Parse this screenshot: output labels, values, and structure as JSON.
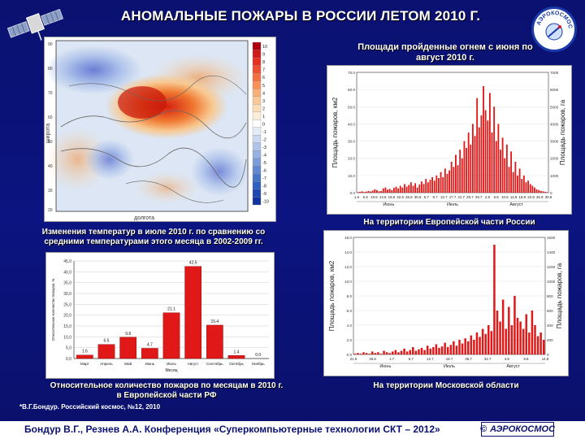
{
  "title": "АНОМАЛЬНЫЕ ПОЖАРЫ В РОССИИ ЛЕТОМ 2010 Г.",
  "areas_caption": "Площади пройденные огнем с июня по август 2010 г.",
  "europe_caption": "На территории Европейской части России",
  "moscow_caption": "На территории Московской области",
  "temp_caption": "Изменения температур в июле 2010 г. по сравнению со средними температурами этого месяца в 2002-2009 гг.",
  "relative_caption": "Относительное количество пожаров по месяцам в 2010 г. в Европейской части РФ",
  "source_note": "*В.Г.Бондур. Российский космос, №12, 2010",
  "footer": "Бондур В.Г., Резнев А.А. Конференция «Суперкомпьютерные технологии СКТ – 2012»",
  "badge_label": "АЭРОКОСМОС",
  "logo_label": "АЭРОКОСМОС",
  "map": {
    "ylabel": "широта",
    "xlabel": "долгота",
    "colorbar_ticks": [
      "10",
      "9",
      "8",
      "7",
      "6",
      "5",
      "4",
      "3",
      "2",
      "1",
      "0",
      "-1",
      "-2",
      "-3",
      "-4",
      "-5",
      "-6",
      "-7",
      "-8",
      "-9",
      "-10"
    ]
  },
  "colors": {
    "bar_red": "#e01818",
    "background": "#0b1480",
    "text_navy": "#0a1170"
  },
  "chart_data": [
    {
      "type": "bar",
      "categories": [
        "Март",
        "Апрель",
        "Май",
        "Июнь",
        "Июль",
        "Август",
        "Сентябрь",
        "Октябрь",
        "Ноябрь"
      ],
      "values": [
        1.6,
        6.5,
        9.8,
        4.7,
        21.1,
        42.5,
        15.4,
        1.4,
        0.0
      ],
      "value_labels": [
        "1.6",
        "6.5",
        "9.8",
        "4.7",
        "21.1",
        "42.5",
        "15.4",
        "1.4",
        "0.0"
      ],
      "xlabel": "Месяц",
      "ylabel": "Относительное количество пожаров, %",
      "yticks": [
        "0,0",
        "5,0",
        "10,0",
        "15,0",
        "20,0",
        "25,0",
        "30,0",
        "35,0",
        "40,0",
        "45,0"
      ],
      "ylim": [
        0,
        45
      ]
    },
    {
      "type": "bar",
      "ylabel": "Площадь пожаров, км2",
      "ylabel_right": "Площадь пожаров, га",
      "xticks": [
        "1.6",
        "6.6",
        "10.6",
        "14.6",
        "18.6",
        "22.6",
        "26.6",
        "30.6",
        "5.7",
        "9.7",
        "13.7",
        "17.7",
        "21.7",
        "25.7",
        "29.7",
        "2.8",
        "6.8",
        "10.8",
        "14.8",
        "18.8",
        "22.8",
        "26.8",
        "30.8"
      ],
      "month_labels": [
        "Июнь",
        "Июль",
        "Август"
      ],
      "yticks": [
        "0.0",
        "10.0",
        "20.0",
        "30.0",
        "40.0",
        "50.0",
        "60.0",
        "70.0"
      ],
      "yticks_right": [
        "0",
        "1000",
        "2000",
        "3000",
        "4000",
        "5000",
        "6000",
        "7000"
      ],
      "ylim": [
        0,
        70
      ],
      "values": [
        0.3,
        0.5,
        0.8,
        0.4,
        0.6,
        1.0,
        0.7,
        1.2,
        2.0,
        1.5,
        0.8,
        1.0,
        2.5,
        3.0,
        1.8,
        2.2,
        1.5,
        2.8,
        3.5,
        2.5,
        4.0,
        3.0,
        5.0,
        3.5,
        4.5,
        6.0,
        4.0,
        5.5,
        3.0,
        4.8,
        6.5,
        5.0,
        8.0,
        6.0,
        7.5,
        9.0,
        7.0,
        10.0,
        8.5,
        12.0,
        9.0,
        14.0,
        11.0,
        13.0,
        18.0,
        15.0,
        22.0,
        16.0,
        25.0,
        20.0,
        30.0,
        26.0,
        35.0,
        28.0,
        40.0,
        33.0,
        55.0,
        38.0,
        45.0,
        62.0,
        48.0,
        42.0,
        58.0,
        35.0,
        50.0,
        30.0,
        40.0,
        25.0,
        32.0,
        20.0,
        28.0,
        15.0,
        24.0,
        12.0,
        18.0,
        10.0,
        14.0,
        8.0,
        10.0,
        6.0,
        7.0,
        5.0,
        4.0,
        3.0,
        2.0,
        1.5,
        1.0,
        0.8,
        0.5,
        0.3
      ]
    },
    {
      "type": "bar",
      "ylabel": "Площадь пожаров, км2",
      "ylabel_right": "Площадь пожаров, га",
      "xticks": [
        "21.6",
        "26.6",
        "1.7",
        "6.7",
        "12.7",
        "19.7",
        "25.7",
        "31.7",
        "4.8",
        "9.8",
        "14.8"
      ],
      "month_labels": [
        "Июнь",
        "Июль",
        "Август"
      ],
      "yticks": [
        "0.0",
        "2.0",
        "4.0",
        "6.0",
        "8.0",
        "10.0",
        "12.0",
        "14.0",
        "16.0"
      ],
      "yticks_right": [
        "0",
        "200",
        "400",
        "600",
        "800",
        "1000",
        "1200",
        "1400",
        "1600"
      ],
      "ylim": [
        0,
        16
      ],
      "values": [
        0.1,
        0.2,
        0.1,
        0.3,
        0.2,
        0.1,
        0.4,
        0.2,
        0.3,
        0.1,
        0.5,
        0.3,
        0.2,
        0.4,
        0.6,
        0.3,
        0.5,
        0.8,
        0.4,
        0.6,
        1.0,
        0.5,
        0.7,
        0.9,
        0.6,
        1.2,
        0.8,
        1.0,
        1.4,
        0.9,
        1.1,
        1.6,
        1.0,
        1.3,
        1.8,
        1.2,
        2.0,
        1.5,
        2.2,
        1.8,
        2.6,
        2.0,
        3.0,
        2.4,
        3.5,
        2.8,
        4.0,
        3.2,
        15.0,
        6.0,
        4.5,
        7.5,
        3.5,
        6.5,
        4.0,
        8.0,
        5.0,
        4.5,
        3.5,
        5.5,
        3.0,
        6.0,
        4.0,
        2.5,
        3.0,
        2.0
      ]
    }
  ]
}
